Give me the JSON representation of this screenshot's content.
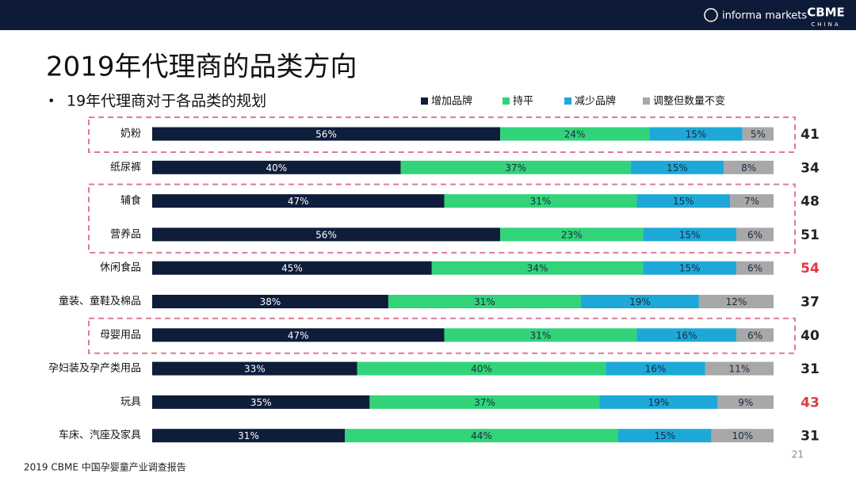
{
  "header": {
    "brand": "informa markets",
    "logo": "CBME",
    "logo_sub": "CHINA"
  },
  "footer": {
    "source": "2019 CBME 中国孕婴童产业调查报告",
    "page": "21"
  },
  "chart_data": {
    "type": "stacked_barh",
    "title": "2019年代理商的品类方向",
    "subtitle": "19年代理商对于各品类的规划",
    "categories": [
      "奶粉",
      "纸尿裤",
      "辅食",
      "营养品",
      "休闲食品",
      "童装、童鞋及棉品",
      "母婴用品",
      "孕妇装及孕产类用品",
      "玩具",
      "车床、汽座及家具"
    ],
    "xlim": [
      0,
      100
    ],
    "series": [
      {
        "name": "增加品牌",
        "color": "#0e1d3a",
        "values": [
          56,
          40,
          47,
          56,
          45,
          38,
          47,
          33,
          35,
          31
        ],
        "value_labels": [
          "56%",
          "40%",
          "47%",
          "56%",
          "45%",
          "38%",
          "47%",
          "33%",
          "35%",
          "31%"
        ]
      },
      {
        "name": "持平",
        "color": "#33d37a",
        "values": [
          24,
          37,
          31,
          23,
          34,
          31,
          31,
          40,
          37,
          44
        ],
        "value_labels": [
          "24%",
          "37%",
          "31%",
          "23%",
          "34%",
          "31%",
          "31%",
          "40%",
          "37%",
          "44%"
        ]
      },
      {
        "name": "减少品牌",
        "color": "#1ea8d8",
        "values": [
          15,
          15,
          15,
          15,
          15,
          19,
          16,
          16,
          19,
          15
        ],
        "value_labels": [
          "15%",
          "15%",
          "15%",
          "15%",
          "15%",
          "19%",
          "16%",
          "16%",
          "19%",
          "15%"
        ]
      },
      {
        "name": "调整但数量不变",
        "color": "#a8a8a8",
        "values": [
          5,
          8,
          7,
          6,
          6,
          12,
          6,
          11,
          9,
          10
        ],
        "value_labels": [
          "5%",
          "8%",
          "7%",
          "6%",
          "6%",
          "12%",
          "6%",
          "11%",
          "9%",
          "10%"
        ]
      }
    ],
    "counts": [
      41,
      34,
      48,
      51,
      54,
      37,
      40,
      31,
      43,
      31
    ],
    "count_colors": [
      "#222222",
      "#222222",
      "#222222",
      "#222222",
      "#e0393e",
      "#222222",
      "#222222",
      "#222222",
      "#e0393e",
      "#222222"
    ],
    "highlight_boxes": [
      [
        0,
        0
      ],
      [
        2,
        3
      ],
      [
        6,
        6
      ]
    ],
    "highlight_color": "#e07a96"
  }
}
